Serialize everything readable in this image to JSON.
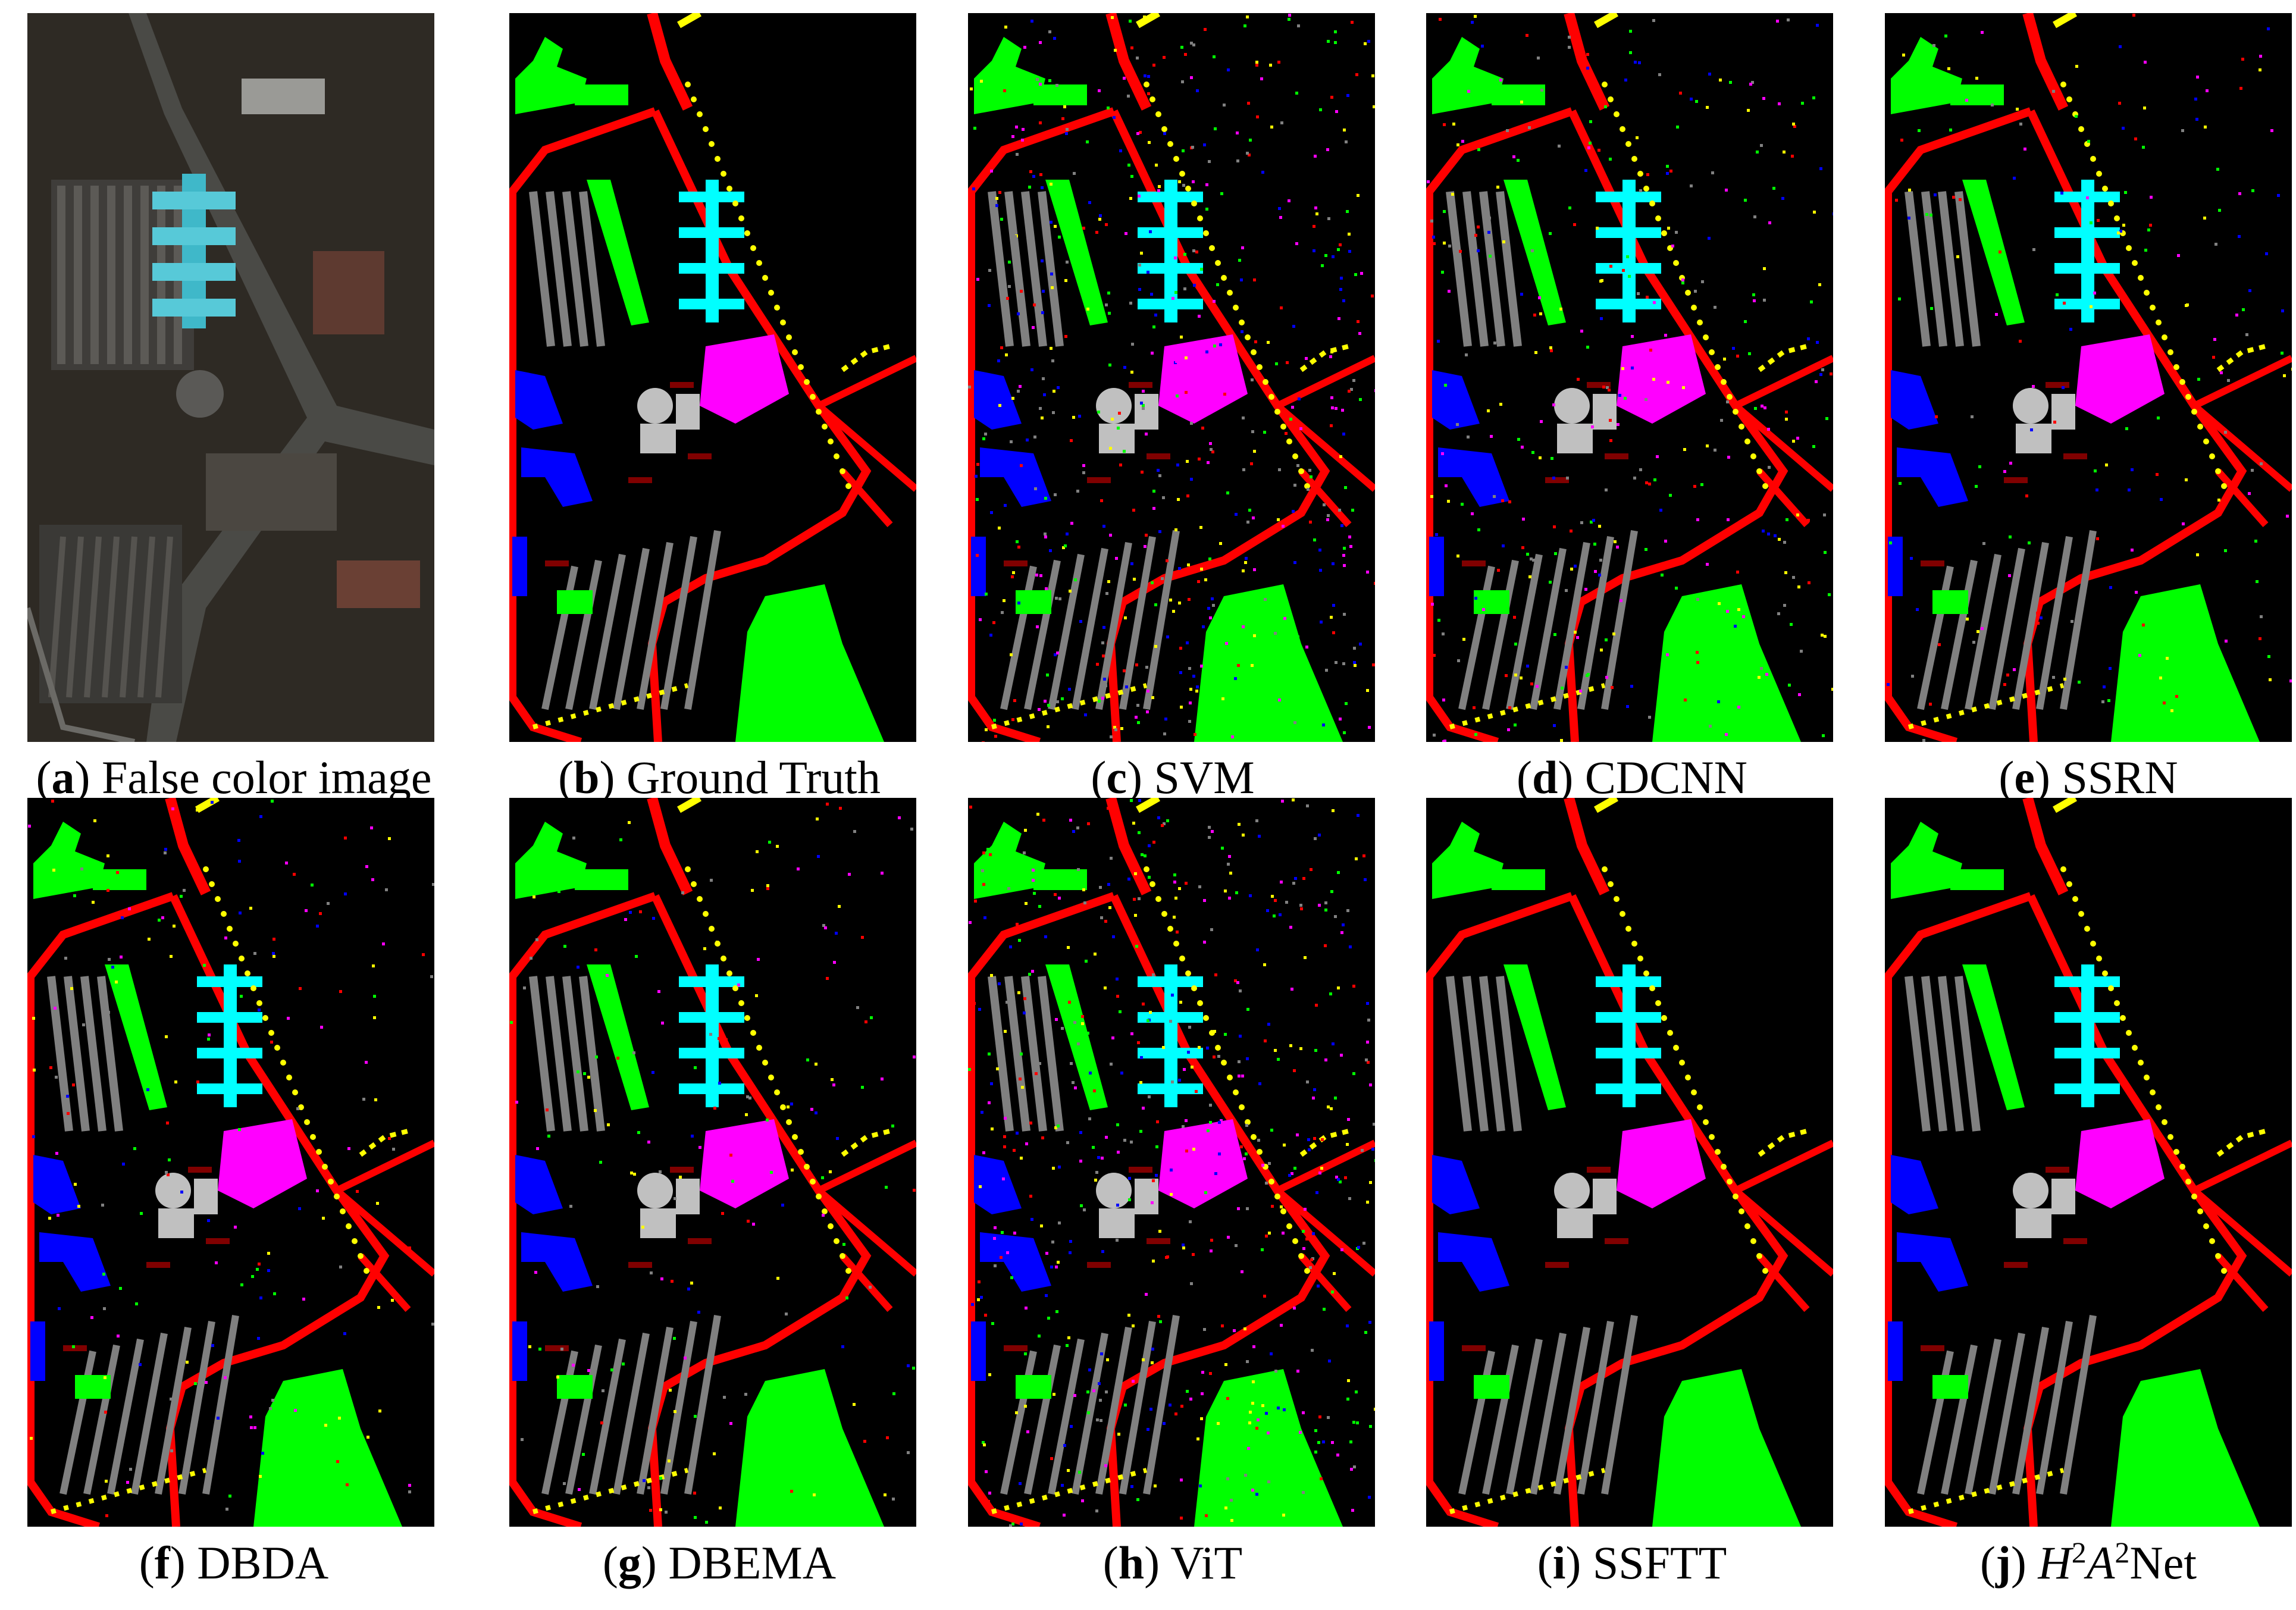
{
  "panels": [
    {
      "id": "a",
      "letter": "a",
      "label": "False color image",
      "kind": "false-color"
    },
    {
      "id": "b",
      "letter": "b",
      "label": "Ground Truth",
      "kind": "map",
      "noise": 0
    },
    {
      "id": "c",
      "letter": "c",
      "label": "SVM",
      "kind": "map",
      "noise": 3
    },
    {
      "id": "d",
      "letter": "d",
      "label": "CDCNN",
      "kind": "map",
      "noise": 2
    },
    {
      "id": "e",
      "letter": "e",
      "label": "SSRN",
      "kind": "map",
      "noise": 1
    },
    {
      "id": "f",
      "letter": "f",
      "label": "DBDA",
      "kind": "map",
      "noise": 1
    },
    {
      "id": "g",
      "letter": "g",
      "label": "DBEMA",
      "kind": "map",
      "noise": 1
    },
    {
      "id": "h",
      "letter": "h",
      "label": "ViT",
      "kind": "map",
      "noise": 3
    },
    {
      "id": "i",
      "letter": "i",
      "label": "SSFTT",
      "kind": "map",
      "noise": 0
    },
    {
      "id": "j",
      "letter": "j",
      "label": "Net",
      "kind": "map",
      "noise": 0,
      "label_math": {
        "base1": "H",
        "sup1": "2",
        "base2": "A",
        "sup2": "2"
      }
    }
  ],
  "class_colors": {
    "background": "#000000",
    "asphalt": "#ff0000",
    "meadows": "#00ff00",
    "gravel": "#ffff00",
    "trees": "#00ffff",
    "metal_sheets": "#ff00ff",
    "bare_soil": "#0000ff",
    "bitumen": "#808080",
    "bricks": "#c0c0c0",
    "shadows": "#800000"
  }
}
